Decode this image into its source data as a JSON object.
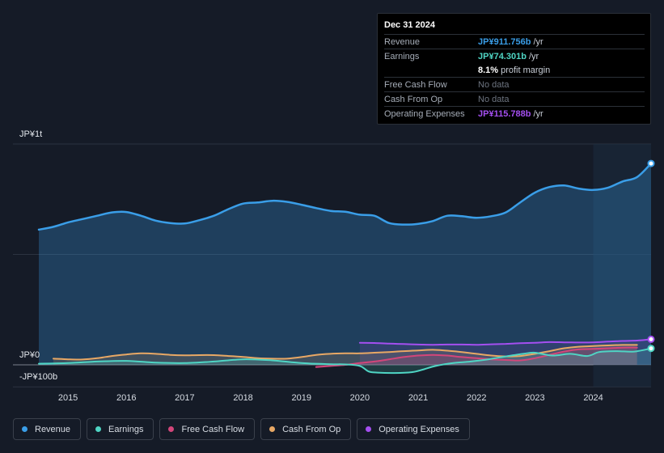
{
  "tooltip": {
    "date": "Dec 31 2024",
    "rows": [
      {
        "label": "Revenue",
        "value": "JP¥911.756b",
        "unit": "/yr",
        "color": "#3a9ee8"
      },
      {
        "label": "Earnings",
        "value": "JP¥74.301b",
        "unit": "/yr",
        "color": "#4fd5c4"
      },
      {
        "label": "",
        "value": "8.1%",
        "unit": "profit margin",
        "color": "#ffffff"
      },
      {
        "label": "Free Cash Flow",
        "value": "No data",
        "unit": "",
        "color": "#6d7480"
      },
      {
        "label": "Cash From Op",
        "value": "No data",
        "unit": "",
        "color": "#6d7480"
      },
      {
        "label": "Operating Expenses",
        "value": "JP¥115.788b",
        "unit": "/yr",
        "color": "#a44ff0"
      }
    ]
  },
  "chart_data": {
    "type": "line",
    "title": "",
    "xlabel": "",
    "ylabel": "",
    "ylim": [
      -100,
      1000
    ],
    "y_unit": "JP¥ billions",
    "y_tick_labels": [
      "JP¥1t",
      "JP¥0",
      "-JP¥100b"
    ],
    "x_tick_labels": [
      "2015",
      "2016",
      "2017",
      "2018",
      "2019",
      "2020",
      "2021",
      "2022",
      "2023",
      "2024"
    ],
    "x_ticks": [
      2015,
      2016,
      2017,
      2018,
      2019,
      2020,
      2021,
      2022,
      2023,
      2024
    ],
    "x_range": [
      2014.5,
      2024.99
    ],
    "highlight_from": 2024.0,
    "series": [
      {
        "name": "Revenue",
        "color": "#3a9ee8",
        "x": [
          2014.5,
          2014.75,
          2015.0,
          2015.25,
          2015.5,
          2015.75,
          2016.0,
          2016.25,
          2016.5,
          2016.75,
          2017.0,
          2017.25,
          2017.5,
          2017.75,
          2018.0,
          2018.25,
          2018.5,
          2018.75,
          2019.0,
          2019.25,
          2019.5,
          2019.75,
          2020.0,
          2020.25,
          2020.5,
          2020.75,
          2021.0,
          2021.25,
          2021.5,
          2021.75,
          2022.0,
          2022.25,
          2022.5,
          2022.75,
          2023.0,
          2023.25,
          2023.5,
          2023.75,
          2024.0,
          2024.25,
          2024.5,
          2024.75,
          2024.99
        ],
        "values": [
          612,
          625,
          645,
          660,
          675,
          690,
          692,
          675,
          653,
          642,
          640,
          655,
          675,
          705,
          730,
          735,
          743,
          738,
          725,
          710,
          697,
          693,
          680,
          675,
          642,
          635,
          638,
          651,
          675,
          673,
          666,
          673,
          690,
          736,
          780,
          805,
          812,
          798,
          792,
          802,
          830,
          850,
          911.756
        ]
      },
      {
        "name": "Earnings",
        "color": "#4fd5c4",
        "x": [
          2014.5,
          2015.0,
          2015.5,
          2016.0,
          2016.5,
          2017.0,
          2017.5,
          2018.0,
          2018.5,
          2019.0,
          2019.5,
          2019.75,
          2020.0,
          2020.15,
          2020.3,
          2020.6,
          2020.9,
          2021.1,
          2021.3,
          2021.6,
          2021.9,
          2022.2,
          2022.5,
          2022.8,
          2023.0,
          2023.3,
          2023.6,
          2023.9,
          2024.1,
          2024.4,
          2024.7,
          2024.99
        ],
        "values": [
          5,
          8,
          15,
          18,
          10,
          8,
          15,
          25,
          20,
          8,
          3,
          2,
          -5,
          -30,
          -35,
          -37,
          -33,
          -20,
          -5,
          8,
          15,
          25,
          38,
          50,
          55,
          42,
          50,
          40,
          58,
          62,
          60,
          74.301
        ]
      },
      {
        "name": "Free Cash Flow",
        "color": "#d3467a",
        "x": [
          2019.25,
          2019.5,
          2019.75,
          2020.0,
          2020.25,
          2020.5,
          2020.75,
          2021.0,
          2021.25,
          2021.5,
          2021.75,
          2022.0,
          2022.25,
          2022.5,
          2022.75,
          2023.0,
          2023.25,
          2023.5,
          2023.75,
          2024.0,
          2024.25,
          2024.5,
          2024.75
        ],
        "values": [
          -10,
          -5,
          0,
          8,
          15,
          25,
          35,
          42,
          45,
          42,
          35,
          30,
          25,
          22,
          20,
          30,
          45,
          60,
          70,
          72,
          75,
          78,
          78
        ]
      },
      {
        "name": "Cash From Op",
        "color": "#e8a865",
        "x": [
          2014.75,
          2015.0,
          2015.25,
          2015.5,
          2015.75,
          2016.0,
          2016.25,
          2016.5,
          2016.75,
          2017.0,
          2017.25,
          2017.5,
          2017.75,
          2018.0,
          2018.25,
          2018.5,
          2018.75,
          2019.0,
          2019.25,
          2019.5,
          2019.75,
          2020.0,
          2020.25,
          2020.5,
          2020.75,
          2021.0,
          2021.25,
          2021.5,
          2021.75,
          2022.0,
          2022.25,
          2022.5,
          2022.75,
          2023.0,
          2023.25,
          2023.5,
          2023.75,
          2024.0,
          2024.25,
          2024.5,
          2024.75
        ],
        "values": [
          28,
          25,
          24,
          30,
          40,
          47,
          52,
          50,
          45,
          43,
          44,
          44,
          40,
          36,
          30,
          28,
          28,
          35,
          45,
          50,
          52,
          52,
          55,
          58,
          62,
          65,
          68,
          64,
          58,
          50,
          42,
          38,
          40,
          50,
          62,
          75,
          82,
          85,
          88,
          90,
          90
        ]
      },
      {
        "name": "Operating Expenses",
        "color": "#a44ff0",
        "x": [
          2020.0,
          2020.25,
          2020.5,
          2020.75,
          2021.0,
          2021.25,
          2021.5,
          2021.75,
          2022.0,
          2022.25,
          2022.5,
          2022.75,
          2023.0,
          2023.25,
          2023.5,
          2023.75,
          2024.0,
          2024.25,
          2024.5,
          2024.75,
          2024.99
        ],
        "values": [
          100,
          99,
          96,
          94,
          92,
          91,
          92,
          92,
          91,
          93,
          95,
          98,
          100,
          103,
          102,
          101,
          102,
          105,
          108,
          110,
          115.788
        ]
      }
    ]
  },
  "legend": [
    {
      "label": "Revenue",
      "color": "#3a9ee8"
    },
    {
      "label": "Earnings",
      "color": "#4fd5c4"
    },
    {
      "label": "Free Cash Flow",
      "color": "#d3467a"
    },
    {
      "label": "Cash From Op",
      "color": "#e8a865"
    },
    {
      "label": "Operating Expenses",
      "color": "#a44ff0"
    }
  ]
}
